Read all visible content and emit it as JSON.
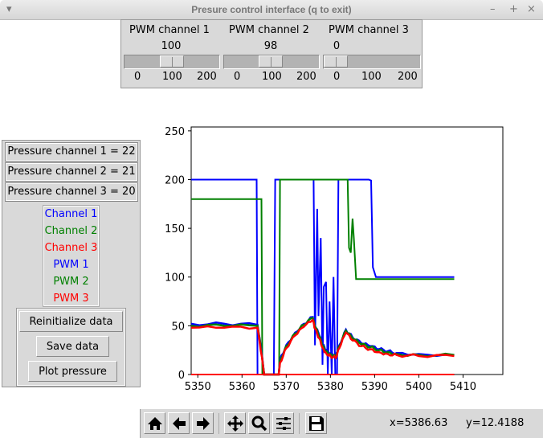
{
  "window": {
    "title": "Presure control interface (q to exit)",
    "minimize": "–",
    "maximize": "+",
    "close": "×",
    "menu": "▾"
  },
  "pwm_channels": [
    {
      "label": "PWM channel 1",
      "value": 100,
      "value_text": "100",
      "min": 0,
      "max": 200,
      "ticks": [
        "0",
        "100",
        "200"
      ]
    },
    {
      "label": "PWM channel 2",
      "value": 98,
      "value_text": "98",
      "min": 0,
      "max": 200,
      "ticks": [
        "0",
        "100",
        "200"
      ]
    },
    {
      "label": "PWM channel 3",
      "value": 0,
      "value_text": "0",
      "min": 0,
      "max": 200,
      "ticks": [
        "0",
        "100",
        "200"
      ]
    }
  ],
  "pressure": [
    "Pressure channel 1 = 22",
    "Pressure channel 2 = 21",
    "Pressure channel 3 = 20"
  ],
  "legend": [
    {
      "label": "Channel 1",
      "color": "#0000ff"
    },
    {
      "label": "Channel 2",
      "color": "#008000"
    },
    {
      "label": "Channel 3",
      "color": "#ff0000"
    },
    {
      "label": "PWM 1",
      "color": "#0000ff"
    },
    {
      "label": "PWM 2",
      "color": "#008000"
    },
    {
      "label": "PWM 3",
      "color": "#ff0000"
    }
  ],
  "buttons": {
    "reinit": "Reinitialize data",
    "save": "Save data",
    "plot": "Plot pressure"
  },
  "toolbar": {
    "icons": [
      "home-icon",
      "back-icon",
      "forward-icon",
      "pan-icon",
      "zoom-icon",
      "configure-icon",
      "save-icon"
    ],
    "x_readout": "x=5386.63",
    "y_readout": "y=12.4188"
  },
  "chart_data": {
    "type": "line",
    "xlim": [
      5348.5,
      5419
    ],
    "ylim": [
      0,
      254
    ],
    "xticks": [
      "5350",
      "5360",
      "5370",
      "5380",
      "5390",
      "5400",
      "5410"
    ],
    "yticks": [
      "0",
      "50",
      "100",
      "150",
      "200",
      "250"
    ],
    "grid": false,
    "series": [
      {
        "name": "PWM 1",
        "color": "#0000ff",
        "points": [
          [
            5348.5,
            200
          ],
          [
            5363.3,
            200
          ],
          [
            5363.5,
            0
          ],
          [
            5367.2,
            0
          ],
          [
            5367.5,
            200
          ],
          [
            5376.2,
            200
          ],
          [
            5376.5,
            30
          ],
          [
            5377,
            170
          ],
          [
            5377.3,
            60
          ],
          [
            5377.8,
            140
          ],
          [
            5378.2,
            10
          ],
          [
            5378.5,
            90
          ],
          [
            5379,
            95
          ],
          [
            5379.4,
            0
          ],
          [
            5379.8,
            75
          ],
          [
            5380.3,
            0
          ],
          [
            5380.7,
            100
          ],
          [
            5381.1,
            0
          ],
          [
            5381.5,
            0
          ],
          [
            5381.8,
            200
          ],
          [
            5388.7,
            200
          ],
          [
            5389.2,
            199
          ],
          [
            5389.6,
            110
          ],
          [
            5390.3,
            100
          ],
          [
            5408,
            100
          ]
        ]
      },
      {
        "name": "PWM 2",
        "color": "#008000",
        "points": [
          [
            5348.5,
            180
          ],
          [
            5364.4,
            180
          ],
          [
            5364.6,
            0
          ],
          [
            5368.4,
            0
          ],
          [
            5368.6,
            200
          ],
          [
            5383.9,
            200
          ],
          [
            5384.2,
            130
          ],
          [
            5384.6,
            125
          ],
          [
            5385,
            160
          ],
          [
            5385.3,
            140
          ],
          [
            5385.8,
            98
          ],
          [
            5408,
            98
          ]
        ]
      },
      {
        "name": "PWM 3",
        "color": "#ff0000",
        "points": [
          [
            5348.5,
            0
          ],
          [
            5408,
            0
          ]
        ]
      },
      {
        "name": "Channel 1",
        "color": "#0000ff",
        "points": [
          [
            5348.5,
            52
          ],
          [
            5356,
            52
          ],
          [
            5363.5,
            51
          ],
          [
            5364.5,
            20
          ],
          [
            5365,
            0
          ],
          [
            5368.3,
            0
          ],
          [
            5368.6,
            15
          ],
          [
            5370,
            30
          ],
          [
            5372,
            43
          ],
          [
            5374,
            52
          ],
          [
            5376,
            59
          ],
          [
            5376.5,
            50
          ],
          [
            5377.5,
            40
          ],
          [
            5378.3,
            30
          ],
          [
            5379,
            25
          ],
          [
            5380,
            22
          ],
          [
            5381.2,
            20
          ],
          [
            5382,
            30
          ],
          [
            5383.5,
            46
          ],
          [
            5385,
            38
          ],
          [
            5387,
            32
          ],
          [
            5389,
            29
          ],
          [
            5391,
            26
          ],
          [
            5393,
            24
          ],
          [
            5395,
            22
          ],
          [
            5400,
            21
          ],
          [
            5408,
            20
          ]
        ]
      },
      {
        "name": "Channel 2",
        "color": "#008000",
        "points": [
          [
            5348.5,
            50
          ],
          [
            5356,
            50
          ],
          [
            5363.5,
            50
          ],
          [
            5364.5,
            19
          ],
          [
            5365,
            0
          ],
          [
            5368.3,
            0
          ],
          [
            5368.6,
            14
          ],
          [
            5370,
            29
          ],
          [
            5372,
            42
          ],
          [
            5374,
            51
          ],
          [
            5376,
            58
          ],
          [
            5376.5,
            49
          ],
          [
            5377.5,
            39
          ],
          [
            5378.3,
            29
          ],
          [
            5379,
            24
          ],
          [
            5380,
            21
          ],
          [
            5381.2,
            19
          ],
          [
            5382,
            29
          ],
          [
            5383.5,
            45
          ],
          [
            5385,
            37
          ],
          [
            5387,
            31
          ],
          [
            5389,
            28
          ],
          [
            5391,
            25
          ],
          [
            5393,
            23
          ],
          [
            5395,
            21
          ],
          [
            5400,
            20
          ],
          [
            5408,
            20
          ]
        ]
      },
      {
        "name": "Channel 3",
        "color": "#ff0000",
        "points": [
          [
            5348.5,
            48
          ],
          [
            5356,
            48
          ],
          [
            5363.5,
            48
          ],
          [
            5364.5,
            18
          ],
          [
            5365,
            0
          ],
          [
            5368.3,
            0
          ],
          [
            5368.6,
            12
          ],
          [
            5370,
            27
          ],
          [
            5372,
            40
          ],
          [
            5374,
            49
          ],
          [
            5376,
            56
          ],
          [
            5376.5,
            47
          ],
          [
            5377.5,
            37
          ],
          [
            5378.3,
            27
          ],
          [
            5379,
            22
          ],
          [
            5380,
            19
          ],
          [
            5381.2,
            17
          ],
          [
            5382,
            27
          ],
          [
            5383.5,
            43
          ],
          [
            5385,
            35
          ],
          [
            5387,
            29
          ],
          [
            5389,
            26
          ],
          [
            5391,
            23
          ],
          [
            5393,
            21
          ],
          [
            5395,
            20
          ],
          [
            5400,
            19
          ],
          [
            5408,
            19
          ]
        ]
      }
    ]
  }
}
